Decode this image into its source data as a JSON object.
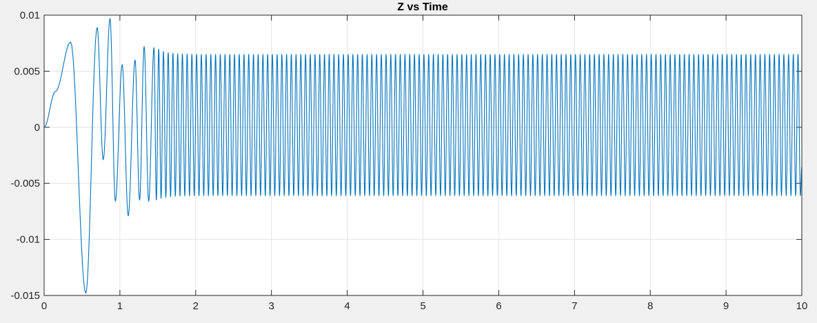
{
  "window": {
    "background_color": "#f0f0f0"
  },
  "chart_data": {
    "type": "line",
    "title": "Z vs Time",
    "xlabel": "",
    "ylabel": "",
    "xlim": [
      0,
      10
    ],
    "ylim": [
      -0.015,
      0.01
    ],
    "grid": true,
    "x_ticks": [
      0,
      1,
      2,
      3,
      4,
      5,
      6,
      7,
      8,
      9,
      10
    ],
    "x_tick_labels": [
      "0",
      "1",
      "2",
      "3",
      "4",
      "5",
      "6",
      "7",
      "8",
      "9",
      "10"
    ],
    "y_ticks": [
      0.01,
      0.005,
      0,
      -0.005,
      -0.01,
      -0.015
    ],
    "y_tick_labels": [
      "0.01",
      "0.005",
      "0",
      "-0.005",
      "-0.01",
      "-0.015"
    ],
    "line_color": "#0072bd",
    "series": [
      {
        "x": [
          0,
          0.1,
          0.2,
          0.28,
          0.35,
          0.42,
          0.5,
          0.55,
          0.6,
          0.7,
          0.78,
          0.87,
          0.93,
          1.0,
          1.1,
          1.2,
          1.32,
          1.43,
          1.55,
          1.7,
          2.0,
          3.0,
          4.0,
          5.0,
          6.0,
          7.0,
          8.0,
          9.0,
          10.0
        ],
        "y": [
          0,
          0.0022,
          0.0045,
          0.007,
          0.0076,
          0.002,
          -0.011,
          -0.0148,
          -0.009,
          0.0089,
          -0.0029,
          0.0097,
          -0.0066,
          0.0056,
          -0.0078,
          0.006,
          0.0072,
          0.0071,
          0.0067,
          0.0065,
          0.0065,
          0.0065,
          0.0065,
          0.0065,
          0.0065,
          0.0065,
          0.0065,
          0.0065,
          -0.0035
        ]
      }
    ],
    "steady_state": {
      "upper_peak": 0.0065,
      "lower_peak": -0.0061,
      "period": 0.0625
    }
  }
}
